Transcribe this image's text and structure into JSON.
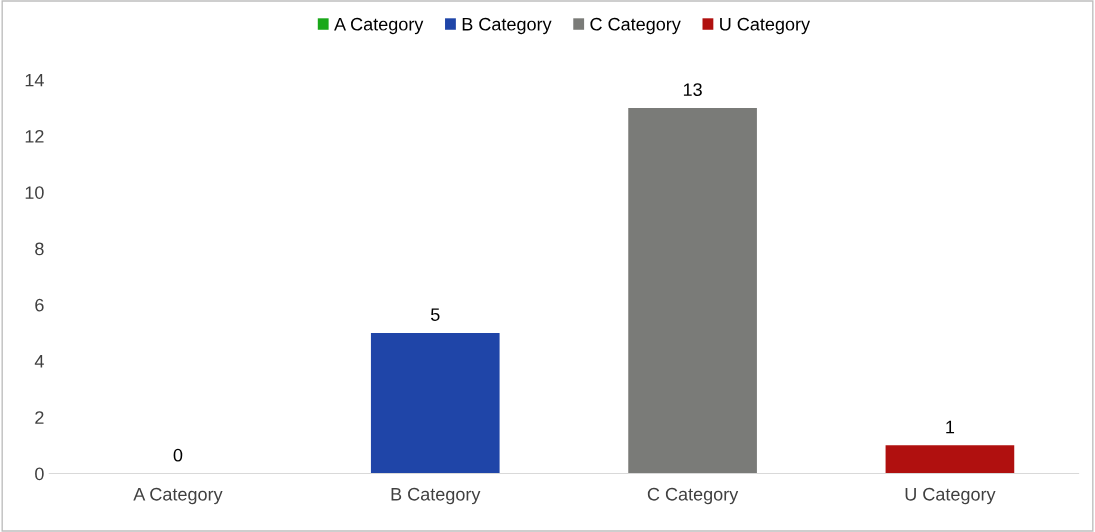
{
  "chart_data": {
    "type": "bar",
    "categories": [
      "A Category",
      "B Category",
      "C Category",
      "U Category"
    ],
    "series": [
      {
        "name": "A Category",
        "color": "#1aa81a",
        "values": [
          0,
          null,
          null,
          null
        ]
      },
      {
        "name": "B Category",
        "color": "#1f45a8",
        "values": [
          null,
          5,
          null,
          null
        ]
      },
      {
        "name": "C Category",
        "color": "#7a7b78",
        "values": [
          null,
          null,
          13,
          null
        ]
      },
      {
        "name": "U Category",
        "color": "#b0100f",
        "values": [
          null,
          null,
          null,
          1
        ]
      }
    ],
    "ylim": [
      0,
      14
    ],
    "yticks": [
      0,
      2,
      4,
      6,
      8,
      10,
      12,
      14
    ],
    "legend": "top",
    "data_labels": true
  }
}
